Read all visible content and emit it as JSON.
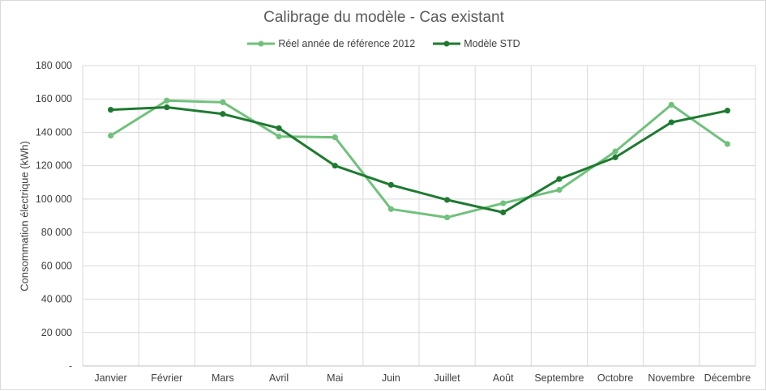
{
  "chart_data": {
    "type": "line",
    "title": "Calibrage du modèle - Cas existant",
    "xlabel": "",
    "ylabel": "Consommation électrique (kWh)",
    "categories": [
      "Janvier",
      "Février",
      "Mars",
      "Avril",
      "Mai",
      "Juin",
      "Juillet",
      "Août",
      "Septembre",
      "Octobre",
      "Novembre",
      "Décembre"
    ],
    "ylim": [
      0,
      180000
    ],
    "yticks": [
      0,
      20000,
      40000,
      60000,
      80000,
      100000,
      120000,
      140000,
      160000,
      180000
    ],
    "ytick_labels": [
      "-",
      "20 000",
      "40 000",
      "60 000",
      "80 000",
      "100 000",
      "120 000",
      "140 000",
      "160 000",
      "180 000"
    ],
    "grid": true,
    "legend_position": "top",
    "series": [
      {
        "name": "Réel année de référence 2012",
        "color": "#70c17c",
        "values": [
          138000,
          159000,
          158000,
          137500,
          137000,
          94000,
          89000,
          97500,
          105500,
          128500,
          156500,
          133000
        ]
      },
      {
        "name": "Modèle STD",
        "color": "#1e7a30",
        "values": [
          153500,
          155000,
          151000,
          142500,
          120000,
          108500,
          99500,
          92000,
          112000,
          125000,
          146000,
          153000
        ]
      }
    ]
  }
}
